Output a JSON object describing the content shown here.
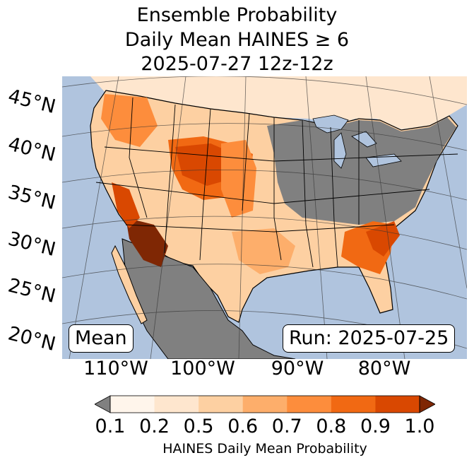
{
  "title": {
    "line1": "Ensemble Probability",
    "line2": "Daily Mean HAINES ≥ 6",
    "line3": "2025-07-27 12z-12z"
  },
  "map": {
    "mean_label": "Mean",
    "run_label": "Run: 2025-07-25",
    "lat_labels": [
      "45°N",
      "40°N",
      "35°N",
      "30°N",
      "25°N",
      "20°N"
    ],
    "lon_labels": [
      "110°W",
      "100°W",
      "90°W",
      "80°W"
    ],
    "colors": {
      "ocean": "#b0c4de",
      "land_low": "#808080",
      "border": "#000000"
    }
  },
  "colorbar": {
    "label": "HAINES Daily Mean Probability",
    "ticks": [
      "0.1",
      "0.2",
      "0.5",
      "0.6",
      "0.7",
      "0.8",
      "0.9",
      "1.0"
    ],
    "under_color": "#808080",
    "over_color": "#7f2704",
    "colors": [
      "#fff5eb",
      "#fee6ce",
      "#fdd0a2",
      "#fdae6b",
      "#fd8d3c",
      "#f16913",
      "#d94801"
    ]
  }
}
